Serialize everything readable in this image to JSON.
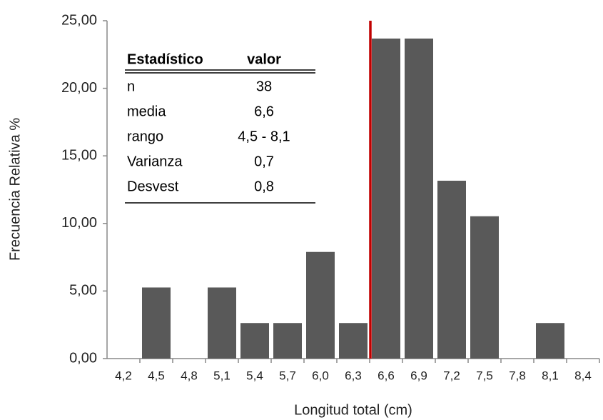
{
  "chart_data": {
    "type": "bar",
    "y_label": "Frecuencia Relativa %",
    "x_label": "Longitud total (cm)",
    "categories": [
      "4,2",
      "4,5",
      "4,8",
      "5,1",
      "5,4",
      "5,7",
      "6,0",
      "6,3",
      "6,6",
      "6,9",
      "7,2",
      "7,5",
      "7,8",
      "8,1",
      "8,4"
    ],
    "values": [
      0,
      5.26,
      0,
      5.26,
      2.63,
      2.63,
      7.89,
      2.63,
      23.68,
      23.68,
      13.16,
      10.53,
      0,
      2.63,
      0
    ],
    "color": "#595959",
    "ylim": [
      0,
      25
    ],
    "yticks": [
      {
        "value": 0,
        "label": "0,00"
      },
      {
        "value": 5,
        "label": "5,00"
      },
      {
        "value": 10,
        "label": "10,00"
      },
      {
        "value": 15,
        "label": "15,00"
      },
      {
        "value": 20,
        "label": "20,00"
      },
      {
        "value": 25,
        "label": "25,00"
      }
    ],
    "grid": false,
    "mean_line": {
      "at": "6,6",
      "color": "#c00000"
    },
    "stats_table": {
      "columns": [
        "Estadístico",
        "valor"
      ],
      "rows": [
        [
          "n",
          "38"
        ],
        [
          "media",
          "6,6"
        ],
        [
          "rango",
          "4,5 - 8,1"
        ],
        [
          "Varianza",
          "0,7"
        ],
        [
          "Desvest",
          "0,8"
        ]
      ]
    }
  }
}
